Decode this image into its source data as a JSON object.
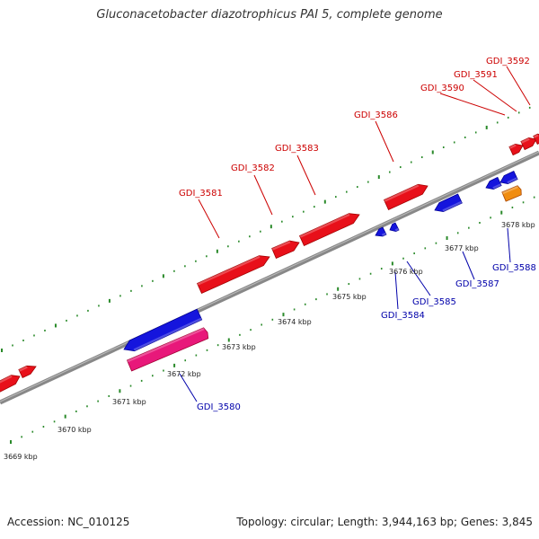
{
  "title": "Gluconacetobacter diazotrophicus PAI 5, complete genome",
  "footer": {
    "accession": "Accession: NC_010125",
    "summary": "Topology: circular; Length: 3,944,163 bp; Genes: 3,845"
  },
  "colors": {
    "forward_gene": "#e8101a",
    "reverse_gene": "#1515dd",
    "rna_gene": "#e8187a",
    "other_feature": "#f08c10",
    "backbone": "#888888",
    "tick": "#2a8a2a",
    "forward_label": "#cc0000",
    "reverse_label": "#0000aa"
  },
  "scale_labels": [
    "3669 kbp",
    "3670 kbp",
    "3671 kbp",
    "3672 kbp",
    "3673 kbp",
    "3674 kbp",
    "3675 kbp",
    "3676 kbp",
    "3677 kbp",
    "3678 kbp"
  ],
  "forward_gene_labels": [
    "GDI_3581",
    "GDI_3582",
    "GDI_3583",
    "GDI_3586",
    "GDI_3590",
    "GDI_3591",
    "GDI_3592"
  ],
  "reverse_gene_labels": [
    "GDI_3580",
    "GDI_3584",
    "GDI_3585",
    "GDI_3587",
    "GDI_3588"
  ]
}
